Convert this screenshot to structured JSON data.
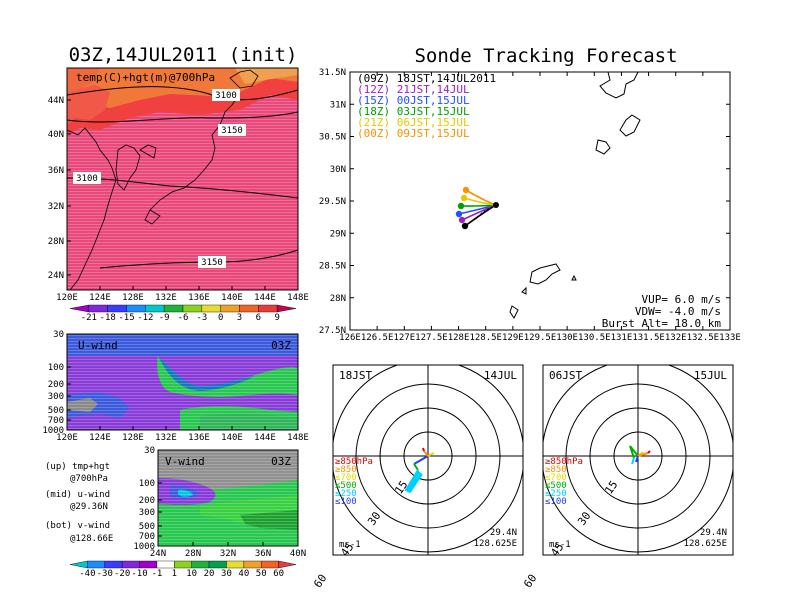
{
  "left": {
    "title": "03Z,14JUL2011 (init)",
    "map_panel": {
      "label": "temp(C)+hgt(m)@700hPa",
      "lat_ticks": [
        "44N",
        "40N",
        "36N",
        "32N",
        "28N",
        "24N"
      ],
      "lon_ticks": [
        "120E",
        "124E",
        "128E",
        "132E",
        "136E",
        "140E",
        "144E",
        "148E"
      ],
      "contour_labels": [
        "3100",
        "3150",
        "3100",
        "3150"
      ],
      "colorbar_ticks": [
        "-21",
        "-18",
        "-15",
        "-12",
        "-9",
        "-6",
        "-3",
        "0",
        "3",
        "6",
        "9"
      ]
    },
    "u_panel": {
      "label": "U-wind",
      "time": "03Z",
      "p_ticks": [
        "30",
        "100",
        "200",
        "300",
        "500",
        "700",
        "1000"
      ],
      "lon_ticks": [
        "120E",
        "124E",
        "128E",
        "132E",
        "136E",
        "140E",
        "144E",
        "148E"
      ]
    },
    "v_panel": {
      "label": "V-wind",
      "time": "03Z",
      "p_ticks": [
        "30",
        "100",
        "200",
        "300",
        "500",
        "700",
        "1000"
      ],
      "lat_ticks": [
        "24N",
        "28N",
        "32N",
        "36N",
        "40N"
      ]
    },
    "legend_lines": [
      {
        "line1": "(up) tmp+hgt",
        "line2": "@700hPa"
      },
      {
        "line1": "(mid) u-wind",
        "line2": "@29.36N"
      },
      {
        "line1": "(bot) v-wind",
        "line2": "@128.66E"
      }
    ],
    "wind_colorbar_ticks": [
      "-40",
      "-30",
      "-20",
      "-10",
      "-1",
      "1",
      "10",
      "20",
      "30",
      "40",
      "50",
      "60"
    ]
  },
  "right": {
    "title": "Sonde Tracking Forecast",
    "launch_legend": [
      {
        "text": "(09Z) 18JST,14JUL2011",
        "color": "#000000"
      },
      {
        "text": "(12Z) 21JST,14JUL",
        "color": "#a020c0"
      },
      {
        "text": "(15Z) 00JST,15JUL",
        "color": "#1e50ff"
      },
      {
        "text": "(18Z) 03JST,15JUL",
        "color": "#00a000"
      },
      {
        "text": "(21Z) 06JST,15JUL",
        "color": "#e6c800"
      },
      {
        "text": "(00Z) 09JST,15JUL",
        "color": "#ff9000"
      }
    ],
    "lat_ticks": [
      "31.5N",
      "31N",
      "30.5N",
      "30N",
      "29.5N",
      "29N",
      "28.5N",
      "28N",
      "27.5N"
    ],
    "lon_ticks": [
      "126E",
      "126.5E",
      "127E",
      "127.5E",
      "128E",
      "128.5E",
      "129E",
      "129.5E",
      "130E",
      "130.5E",
      "131E",
      "131.5E",
      "132E",
      "132.5E",
      "133E"
    ],
    "params": {
      "vup": "VUP= 6.0 m/s",
      "vdw": "VDW= -4.0 m/s",
      "burst": "Burst Alt= 18.0 km"
    }
  },
  "hodographs": [
    {
      "time": "18JST",
      "date": "14JUL",
      "ring_labels": [
        "15",
        "30",
        "45",
        "60"
      ],
      "lat": "29.4N",
      "lon": "128.625E",
      "unit": "ms-1",
      "levels": [
        {
          "text": "≥850hPa",
          "color": "#e00000"
        },
        {
          "text": "≥850",
          "color": "#ff9000"
        },
        {
          "text": "≤700",
          "color": "#e6d800"
        },
        {
          "text": "≤500",
          "color": "#00b000"
        },
        {
          "text": "≤250",
          "color": "#00d0ff"
        },
        {
          "text": "≤100",
          "color": "#2040ff"
        }
      ]
    },
    {
      "time": "06JST",
      "date": "15JUL",
      "ring_labels": [
        "15",
        "30",
        "45",
        "60"
      ],
      "lat": "29.4N",
      "lon": "128.625E",
      "unit": "ms-1",
      "levels": [
        {
          "text": "≥850hPa",
          "color": "#e00000"
        },
        {
          "text": "≥850",
          "color": "#ff9000"
        },
        {
          "text": "≤700",
          "color": "#e6d800"
        },
        {
          "text": "≤500",
          "color": "#00b000"
        },
        {
          "text": "≤250",
          "color": "#00d0ff"
        },
        {
          "text": "≤100",
          "color": "#2040ff"
        }
      ]
    }
  ],
  "colors": {
    "warm_fill": "#f03c3c",
    "hot_fill": "#e05080",
    "orange_fill": "#f07830",
    "u_purple": "#8a3cd8",
    "u_blue": "#3c5adc",
    "u_green": "#28c850",
    "v_gray": "#909090"
  }
}
